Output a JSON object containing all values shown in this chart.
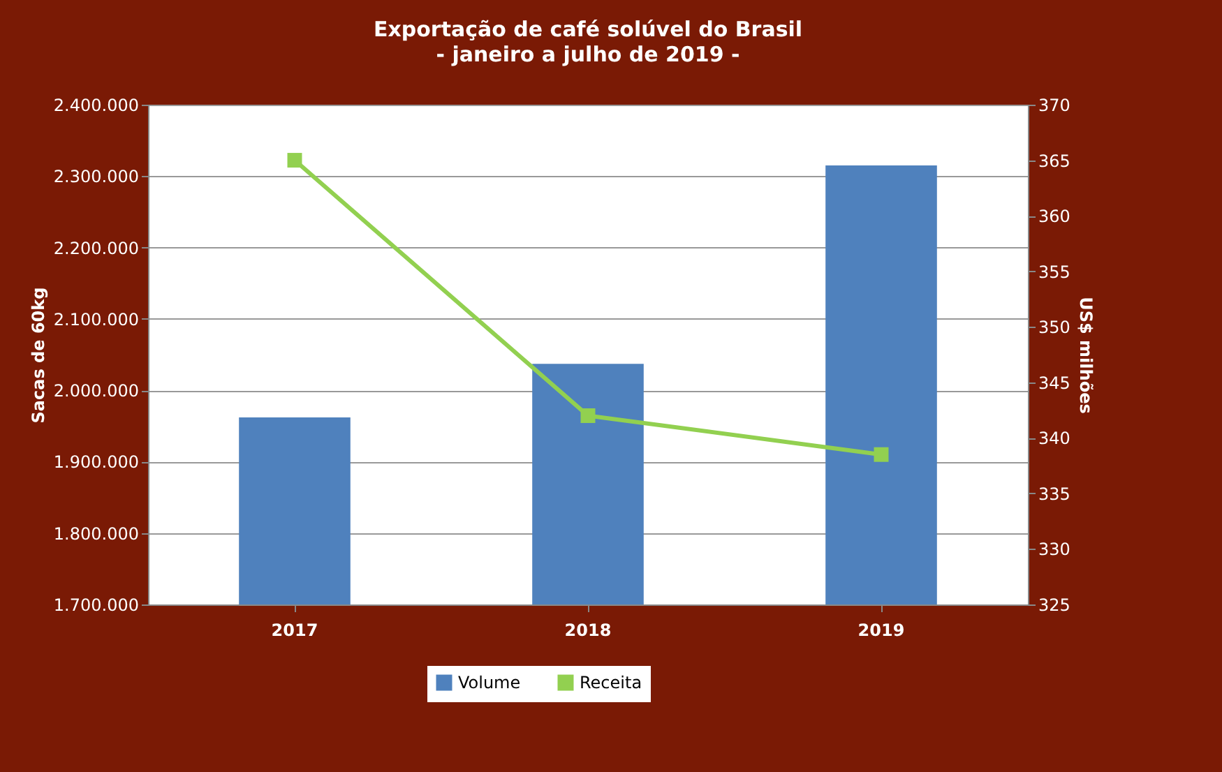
{
  "chart_data": {
    "type": "bar",
    "title": "Exportação de café solúvel do Brasil",
    "subtitle": "- janeiro a julho de 2019 -",
    "ylabel": "Sacas de 60kg",
    "y2label": "US$ milhões",
    "categories": [
      "2017",
      "2018",
      "2019"
    ],
    "series": [
      {
        "name": "Volume",
        "color": "#4f81bd",
        "values": [
          1962000,
          2037000,
          2315000
        ]
      },
      {
        "name": "Receita",
        "type": "line",
        "axis": "y2",
        "color": "#92d050",
        "values": [
          365,
          342,
          338.5
        ]
      }
    ],
    "ylim": [
      1700000,
      2400000
    ],
    "yticks": [
      {
        "value": 1700000,
        "label": "1.700.000"
      },
      {
        "value": 1800000,
        "label": "1.800.000"
      },
      {
        "value": 1900000,
        "label": "1.900.000"
      },
      {
        "value": 2000000,
        "label": "2.000.000"
      },
      {
        "value": 2100000,
        "label": "2.100.000"
      },
      {
        "value": 2200000,
        "label": "2.200.000"
      },
      {
        "value": 2300000,
        "label": "2.300.000"
      },
      {
        "value": 2400000,
        "label": "2.400.000"
      }
    ],
    "y2lim": [
      325,
      370
    ],
    "y2ticks": [
      325,
      330,
      335,
      340,
      345,
      350,
      355,
      360,
      365,
      370
    ],
    "grid": "y",
    "legend": "bottom",
    "marker": "square"
  }
}
